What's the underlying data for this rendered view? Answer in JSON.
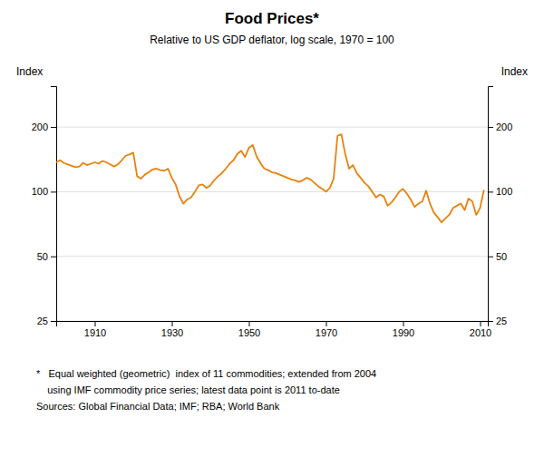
{
  "chart_data": {
    "type": "line",
    "title": "Food Prices*",
    "subtitle": "Relative to US GDP deflator, log scale, 1970 = 100",
    "ylabel": "Index",
    "y2label": "Index",
    "footnotes": [
      "*   Equal weighted (geometric)  index of 11 commodities; extended from 2004",
      "    using IMF commodity price series; latest data point is 2011 to-date",
      "Sources: Global Financial Data; IMF; RBA; World Bank"
    ],
    "color": "#E8820C",
    "log": "y",
    "grid": true,
    "xlim": [
      1900,
      2012
    ],
    "xticks": [
      1910,
      1930,
      1950,
      1970,
      1990,
      2010
    ],
    "ylim": [
      25,
      310
    ],
    "yticks": [
      25,
      50,
      100,
      200
    ],
    "y2lim": [
      25,
      310
    ],
    "y2ticks": [
      25,
      50,
      100,
      200
    ],
    "x": [
      1900,
      1901,
      1902,
      1903,
      1904,
      1905,
      1906,
      1907,
      1908,
      1909,
      1910,
      1911,
      1912,
      1913,
      1914,
      1915,
      1916,
      1917,
      1918,
      1919,
      1920,
      1921,
      1922,
      1923,
      1924,
      1925,
      1926,
      1927,
      1928,
      1929,
      1930,
      1931,
      1932,
      1933,
      1934,
      1935,
      1936,
      1937,
      1938,
      1939,
      1940,
      1941,
      1942,
      1943,
      1944,
      1945,
      1946,
      1947,
      1948,
      1949,
      1950,
      1951,
      1952,
      1953,
      1954,
      1955,
      1956,
      1957,
      1958,
      1959,
      1960,
      1961,
      1962,
      1963,
      1964,
      1965,
      1966,
      1967,
      1968,
      1969,
      1970,
      1971,
      1972,
      1973,
      1974,
      1975,
      1976,
      1977,
      1978,
      1979,
      1980,
      1981,
      1982,
      1983,
      1984,
      1985,
      1986,
      1987,
      1988,
      1989,
      1990,
      1991,
      1992,
      1993,
      1994,
      1995,
      1996,
      1997,
      1998,
      1999,
      2000,
      2001,
      2002,
      2003,
      2004,
      2005,
      2006,
      2007,
      2008,
      2009,
      2010,
      2011
    ],
    "values": [
      137,
      140,
      136,
      134,
      132,
      130,
      131,
      136,
      133,
      135,
      137,
      135,
      139,
      137,
      134,
      131,
      134,
      140,
      147,
      149,
      152,
      118,
      115,
      120,
      123,
      127,
      128,
      126,
      125,
      128,
      116,
      108,
      95,
      88,
      92,
      94,
      100,
      107,
      108,
      104,
      107,
      113,
      118,
      122,
      128,
      135,
      140,
      150,
      155,
      145,
      160,
      165,
      146,
      136,
      128,
      126,
      123,
      122,
      120,
      118,
      116,
      114,
      113,
      111,
      113,
      116,
      114,
      110,
      106,
      103,
      100,
      104,
      115,
      182,
      185,
      150,
      128,
      133,
      122,
      116,
      110,
      106,
      100,
      94,
      97,
      95,
      86,
      89,
      94,
      100,
      103,
      98,
      92,
      85,
      88,
      90,
      101,
      88,
      80,
      76,
      72,
      75,
      78,
      84,
      86,
      88,
      82,
      93,
      90,
      78,
      84,
      102
    ]
  }
}
